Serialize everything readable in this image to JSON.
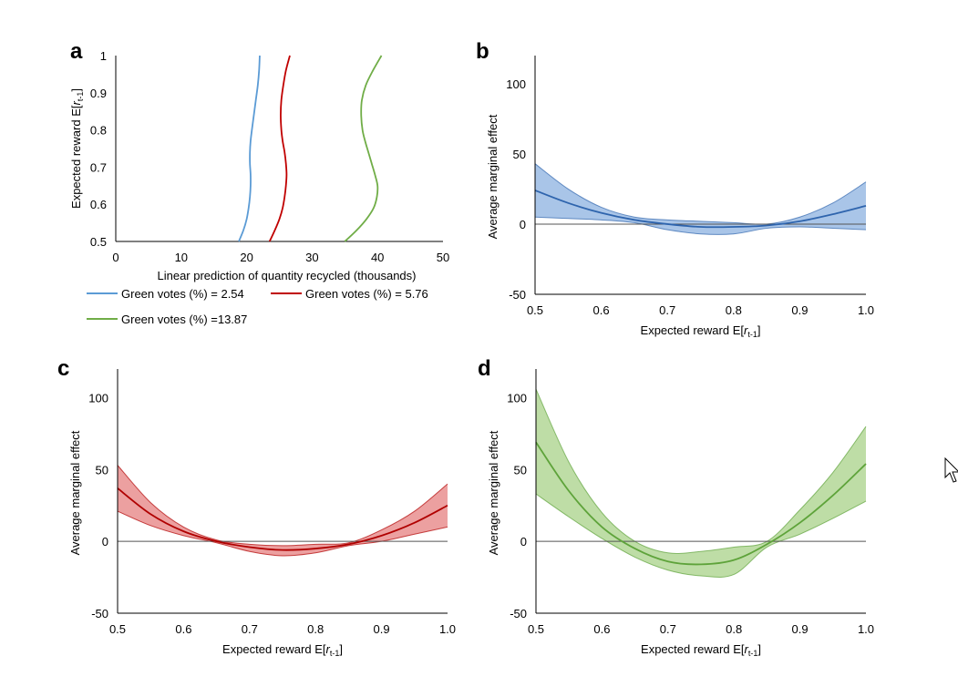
{
  "chart_data": [
    {
      "panel": "a",
      "type": "line",
      "xlabel": "Linear prediction of quantity recycled (thousands)",
      "ylabel": "Expected reward E[r t-1]",
      "ylabel_main": "Expected reward E[",
      "ylabel_var": "r",
      "ylabel_sub": "t-1",
      "ylabel_close": "]",
      "xlim": [
        0,
        50
      ],
      "ylim": [
        0.5,
        1
      ],
      "xticks": [
        "0",
        "10",
        "20",
        "30",
        "40",
        "50"
      ],
      "yticks": [
        "0.5",
        "0.6",
        "0.7",
        "0.8",
        "0.9",
        "1"
      ],
      "series": [
        {
          "name": "Green votes (%) = 2.54",
          "color": "#5b9bd5",
          "x": [
            18.8,
            19.5,
            20.0,
            20.3,
            20.5,
            20.6,
            20.6,
            20.5,
            20.5,
            20.6,
            20.8,
            21.1,
            21.4,
            21.7,
            21.9,
            22.0
          ],
          "y": [
            0.5,
            0.53,
            0.56,
            0.59,
            0.62,
            0.65,
            0.68,
            0.71,
            0.74,
            0.77,
            0.8,
            0.84,
            0.88,
            0.92,
            0.96,
            1.0
          ]
        },
        {
          "name": "Green votes (%) = 5.76",
          "color": "#c00000",
          "x": [
            23.5,
            24.3,
            25.0,
            25.5,
            25.8,
            26.0,
            26.1,
            26.0,
            25.8,
            25.5,
            25.3,
            25.2,
            25.3,
            25.6,
            26.0,
            26.6
          ],
          "y": [
            0.5,
            0.53,
            0.56,
            0.59,
            0.62,
            0.65,
            0.68,
            0.71,
            0.74,
            0.77,
            0.8,
            0.84,
            0.88,
            0.92,
            0.96,
            1.0
          ]
        },
        {
          "name": "Green votes (%) =13.87",
          "color": "#70ad47",
          "x": [
            35.0,
            36.8,
            38.3,
            39.4,
            39.9,
            40.0,
            39.6,
            39.1,
            38.6,
            38.1,
            37.7,
            37.5,
            37.6,
            38.2,
            39.3,
            40.6
          ],
          "y": [
            0.5,
            0.53,
            0.56,
            0.59,
            0.62,
            0.65,
            0.68,
            0.71,
            0.74,
            0.77,
            0.8,
            0.84,
            0.88,
            0.92,
            0.96,
            1.0
          ]
        }
      ]
    },
    {
      "panel": "b",
      "type": "area",
      "color": "#2e64ad",
      "fill": "#6f9fd8",
      "xlabel": "Expected reward E[r t-1]",
      "xlabel_main": "Expected reward E[",
      "xlabel_var": "r",
      "xlabel_sub": "t-1",
      "xlabel_close": "]",
      "ylabel": "Average marginal effect",
      "xlim": [
        0.5,
        1.0
      ],
      "ylim": [
        -50,
        120
      ],
      "xticks": [
        "0.5",
        "0.6",
        "0.7",
        "0.8",
        "0.9",
        "1.0"
      ],
      "yticks": [
        "-50",
        "0",
        "50",
        "100"
      ],
      "x": [
        0.5,
        0.55,
        0.6,
        0.65,
        0.7,
        0.75,
        0.8,
        0.85,
        0.9,
        0.95,
        1.0
      ],
      "mean": [
        24,
        15,
        8,
        3,
        0,
        -2,
        -2,
        -1,
        2,
        7,
        13
      ],
      "lower": [
        5,
        4,
        3,
        1,
        -4,
        -7,
        -7,
        -3,
        -2,
        -3,
        -4
      ],
      "upper": [
        43,
        25,
        12,
        5,
        3,
        2,
        1,
        0,
        5,
        15,
        30
      ]
    },
    {
      "panel": "c",
      "type": "area",
      "color": "#b00000",
      "fill": "#e06060",
      "xlabel": "Expected reward E[r t-1]",
      "xlabel_main": "Expected reward E[",
      "xlabel_var": "r",
      "xlabel_sub": "t-1",
      "xlabel_close": "]",
      "ylabel": "Average marginal effect",
      "xlim": [
        0.5,
        1.0
      ],
      "ylim": [
        -50,
        120
      ],
      "xticks": [
        "0.5",
        "0.6",
        "0.7",
        "0.8",
        "0.9",
        "1.0"
      ],
      "yticks": [
        "-50",
        "0",
        "50",
        "100"
      ],
      "x": [
        0.5,
        0.55,
        0.6,
        0.65,
        0.7,
        0.75,
        0.8,
        0.85,
        0.9,
        0.95,
        1.0
      ],
      "mean": [
        37,
        19,
        7,
        0,
        -4,
        -6,
        -5,
        -2,
        4,
        13,
        25
      ],
      "lower": [
        21,
        11,
        4,
        -1,
        -7,
        -10,
        -8,
        -3,
        0,
        5,
        10
      ],
      "upper": [
        53,
        27,
        10,
        1,
        -2,
        -3,
        -2,
        -1,
        8,
        21,
        40
      ]
    },
    {
      "panel": "d",
      "type": "area",
      "color": "#5ea33a",
      "fill": "#93c76b",
      "xlabel": "Expected reward E[r t-1]",
      "xlabel_main": "Expected reward E[",
      "xlabel_var": "r",
      "xlabel_sub": "t-1",
      "xlabel_close": "]",
      "ylabel": "Average marginal effect",
      "xlim": [
        0.5,
        1.0
      ],
      "ylim": [
        -50,
        120
      ],
      "xticks": [
        "0.5",
        "0.6",
        "0.7",
        "0.8",
        "0.9",
        "1.0"
      ],
      "yticks": [
        "-50",
        "0",
        "50",
        "100"
      ],
      "x": [
        0.5,
        0.55,
        0.6,
        0.65,
        0.7,
        0.75,
        0.8,
        0.85,
        0.9,
        0.95,
        1.0
      ],
      "mean": [
        69,
        35,
        10,
        -5,
        -14,
        -16,
        -13,
        -2,
        13,
        32,
        54
      ],
      "lower": [
        33,
        17,
        2,
        -11,
        -20,
        -24,
        -23,
        -4,
        5,
        16,
        28
      ],
      "upper": [
        106,
        55,
        20,
        0,
        -8,
        -7,
        -4,
        0,
        22,
        48,
        80
      ]
    }
  ]
}
